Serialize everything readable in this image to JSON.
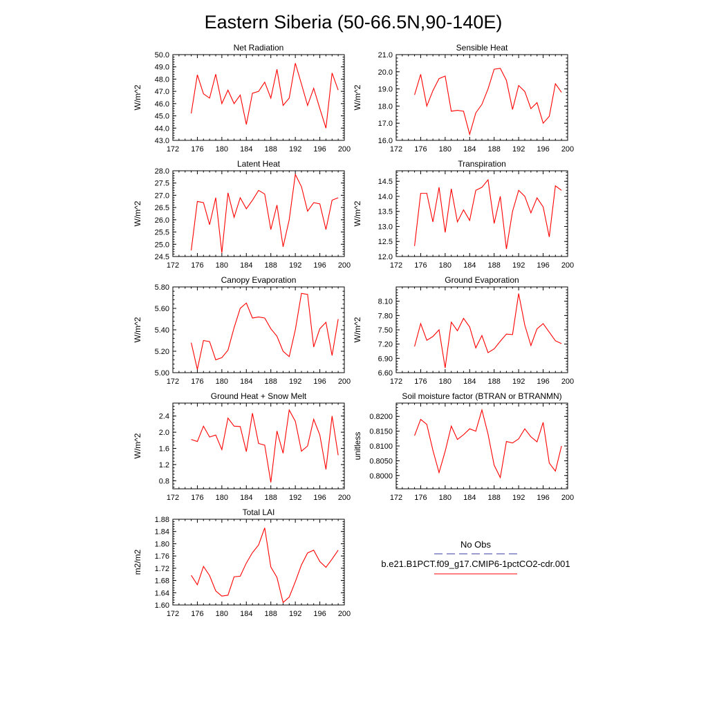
{
  "figure": {
    "title": "Eastern Siberia (50-66.5N,90-140E)"
  },
  "legend": {
    "obs_label": "No Obs",
    "obs_color": "#3a3aa0",
    "model_label": "b.e21.B1PCT.f09_g17.CMIP6-1pctCO2-cdr.001",
    "model_color": "#ff0000"
  },
  "chart_data": [
    {
      "type": "line",
      "title": "Net Radiation",
      "xlabel": "",
      "ylabel": "W/m^2",
      "xlim": [
        172,
        200
      ],
      "ylim": [
        43.0,
        50.0
      ],
      "xticks": [
        "172",
        "176",
        "180",
        "184",
        "188",
        "192",
        "196",
        "200"
      ],
      "yticks": [
        "43.0",
        "44.0",
        "45.0",
        "46.0",
        "47.0",
        "48.0",
        "49.0",
        "50.0"
      ],
      "x": [
        175,
        176,
        177,
        178,
        179,
        180,
        181,
        182,
        183,
        184,
        185,
        186,
        187,
        188,
        189,
        190,
        191,
        192,
        193,
        194,
        195,
        196,
        197,
        198,
        199
      ],
      "series": [
        {
          "values": [
            45.2,
            48.35,
            46.8,
            46.45,
            48.4,
            46.0,
            47.1,
            46.0,
            46.7,
            44.3,
            46.85,
            47.0,
            47.75,
            46.45,
            48.8,
            45.85,
            46.45,
            49.3,
            47.6,
            45.85,
            47.25,
            45.6,
            44.0,
            48.5,
            47.1
          ]
        }
      ]
    },
    {
      "type": "line",
      "title": "Sensible Heat",
      "xlabel": "",
      "ylabel": "W/m^2",
      "xlim": [
        172,
        200
      ],
      "ylim": [
        16.0,
        21.0
      ],
      "xticks": [
        "172",
        "176",
        "180",
        "184",
        "188",
        "192",
        "196",
        "200"
      ],
      "yticks": [
        "16.0",
        "17.0",
        "18.0",
        "19.0",
        "20.0",
        "21.0"
      ],
      "x": [
        175,
        176,
        177,
        178,
        179,
        180,
        181,
        182,
        183,
        184,
        185,
        186,
        187,
        188,
        189,
        190,
        191,
        192,
        193,
        194,
        195,
        196,
        197,
        198,
        199
      ],
      "series": [
        {
          "values": [
            18.65,
            19.85,
            18.0,
            18.9,
            19.6,
            19.75,
            17.7,
            17.75,
            17.7,
            16.35,
            17.6,
            18.1,
            19.0,
            20.15,
            20.2,
            19.5,
            17.8,
            19.2,
            18.85,
            17.85,
            18.2,
            17.0,
            17.4,
            19.3,
            18.8
          ]
        }
      ]
    },
    {
      "type": "line",
      "title": "Latent Heat",
      "xlabel": "",
      "ylabel": "W/m^2",
      "xlim": [
        172,
        200
      ],
      "ylim": [
        24.5,
        28.0
      ],
      "xticks": [
        "172",
        "176",
        "180",
        "184",
        "188",
        "192",
        "196",
        "200"
      ],
      "yticks": [
        "24.5",
        "25.0",
        "25.5",
        "26.0",
        "26.5",
        "27.0",
        "27.5",
        "28.0"
      ],
      "x": [
        175,
        176,
        177,
        178,
        179,
        180,
        181,
        182,
        183,
        184,
        185,
        186,
        187,
        188,
        189,
        190,
        191,
        192,
        193,
        194,
        195,
        196,
        197,
        198,
        199
      ],
      "series": [
        {
          "values": [
            24.75,
            26.75,
            26.7,
            25.8,
            26.9,
            24.65,
            27.1,
            26.1,
            26.9,
            26.45,
            26.8,
            27.2,
            27.05,
            25.6,
            26.6,
            24.9,
            26.0,
            27.85,
            27.35,
            26.35,
            26.7,
            26.65,
            25.6,
            26.8,
            26.9
          ]
        }
      ]
    },
    {
      "type": "line",
      "title": "Transpiration",
      "xlabel": "",
      "ylabel": "W/m^2",
      "xlim": [
        172,
        200
      ],
      "ylim": [
        12.0,
        14.85
      ],
      "xticks": [
        "172",
        "176",
        "180",
        "184",
        "188",
        "192",
        "196",
        "200"
      ],
      "yticks": [
        "12.0",
        "12.5",
        "13.0",
        "13.5",
        "14.0",
        "14.5"
      ],
      "x": [
        175,
        176,
        177,
        178,
        179,
        180,
        181,
        182,
        183,
        184,
        185,
        186,
        187,
        188,
        189,
        190,
        191,
        192,
        193,
        194,
        195,
        196,
        197,
        198,
        199
      ],
      "series": [
        {
          "values": [
            12.35,
            14.1,
            14.1,
            13.15,
            14.3,
            12.8,
            14.25,
            13.15,
            13.55,
            13.2,
            14.2,
            14.3,
            14.55,
            13.1,
            14.0,
            12.25,
            13.5,
            14.2,
            14.0,
            13.45,
            13.95,
            13.65,
            12.65,
            14.35,
            14.2
          ]
        }
      ]
    },
    {
      "type": "line",
      "title": "Canopy Evaporation",
      "xlabel": "",
      "ylabel": "W/m^2",
      "xlim": [
        172,
        200
      ],
      "ylim": [
        5.0,
        5.8
      ],
      "xticks": [
        "172",
        "176",
        "180",
        "184",
        "188",
        "192",
        "196",
        "200"
      ],
      "yticks": [
        "5.00",
        "5.20",
        "5.40",
        "5.60",
        "5.80"
      ],
      "x": [
        175,
        176,
        177,
        178,
        179,
        180,
        181,
        182,
        183,
        184,
        185,
        186,
        187,
        188,
        189,
        190,
        191,
        192,
        193,
        194,
        195,
        196,
        197,
        198,
        199
      ],
      "series": [
        {
          "values": [
            5.28,
            5.03,
            5.3,
            5.29,
            5.12,
            5.14,
            5.21,
            5.42,
            5.6,
            5.65,
            5.51,
            5.52,
            5.51,
            5.41,
            5.34,
            5.2,
            5.15,
            5.4,
            5.74,
            5.73,
            5.24,
            5.41,
            5.47,
            5.16,
            5.5
          ]
        }
      ]
    },
    {
      "type": "line",
      "title": "Ground Evaporation",
      "xlabel": "",
      "ylabel": "W/m^2",
      "xlim": [
        172,
        200
      ],
      "ylim": [
        6.6,
        8.4
      ],
      "xticks": [
        "172",
        "176",
        "180",
        "184",
        "188",
        "192",
        "196",
        "200"
      ],
      "yticks": [
        "6.60",
        "6.90",
        "7.20",
        "7.50",
        "7.80",
        "8.10"
      ],
      "x": [
        175,
        176,
        177,
        178,
        179,
        180,
        181,
        182,
        183,
        184,
        185,
        186,
        187,
        188,
        189,
        190,
        191,
        192,
        193,
        194,
        195,
        196,
        197,
        198,
        199
      ],
      "series": [
        {
          "values": [
            7.15,
            7.63,
            7.28,
            7.36,
            7.5,
            6.7,
            7.66,
            7.48,
            7.74,
            7.56,
            7.12,
            7.38,
            7.02,
            7.1,
            7.26,
            7.41,
            7.4,
            8.26,
            7.6,
            7.17,
            7.52,
            7.63,
            7.45,
            7.27,
            7.21
          ]
        }
      ]
    },
    {
      "type": "line",
      "title": "Ground Heat + Snow Melt",
      "xlabel": "",
      "ylabel": "W/m^2",
      "xlim": [
        172,
        200
      ],
      "ylim": [
        0.6,
        2.72
      ],
      "xticks": [
        "172",
        "176",
        "180",
        "184",
        "188",
        "192",
        "196",
        "200"
      ],
      "yticks": [
        "0.8",
        "1.2",
        "1.6",
        "2.0",
        "2.4"
      ],
      "x": [
        175,
        176,
        177,
        178,
        179,
        180,
        181,
        182,
        183,
        184,
        185,
        186,
        187,
        188,
        189,
        190,
        191,
        192,
        193,
        194,
        195,
        196,
        197,
        198,
        199
      ],
      "series": [
        {
          "values": [
            1.82,
            1.77,
            2.15,
            1.88,
            1.93,
            1.57,
            2.35,
            2.15,
            2.14,
            1.52,
            2.47,
            1.72,
            1.68,
            0.76,
            2.03,
            1.48,
            2.55,
            2.27,
            1.53,
            1.66,
            2.32,
            1.93,
            1.08,
            2.4,
            1.43
          ]
        }
      ]
    },
    {
      "type": "line",
      "title": "Soil moisture factor (BTRAN or BTRANMN)",
      "xlabel": "",
      "ylabel": "unitless",
      "xlim": [
        172,
        200
      ],
      "ylim": [
        0.7955,
        0.8245
      ],
      "xticks": [
        "172",
        "176",
        "180",
        "184",
        "188",
        "192",
        "196",
        "200"
      ],
      "yticks": [
        "0.8000",
        "0.8050",
        "0.8100",
        "0.8150",
        "0.8200"
      ],
      "x": [
        175,
        176,
        177,
        178,
        179,
        180,
        181,
        182,
        183,
        184,
        185,
        186,
        187,
        188,
        189,
        190,
        191,
        192,
        193,
        194,
        195,
        196,
        197,
        198,
        199
      ],
      "series": [
        {
          "values": [
            0.8135,
            0.819,
            0.8173,
            0.8085,
            0.801,
            0.8082,
            0.8167,
            0.8122,
            0.8138,
            0.8158,
            0.815,
            0.8222,
            0.814,
            0.8035,
            0.7993,
            0.8115,
            0.811,
            0.8124,
            0.8158,
            0.8131,
            0.8114,
            0.818,
            0.8042,
            0.8015,
            0.81
          ]
        }
      ]
    },
    {
      "type": "line",
      "title": "Total LAI",
      "xlabel": "",
      "ylabel": "m2/m2",
      "xlim": [
        172,
        200
      ],
      "ylim": [
        1.6,
        1.88
      ],
      "xticks": [
        "172",
        "176",
        "180",
        "184",
        "188",
        "192",
        "196",
        "200"
      ],
      "yticks": [
        "1.60",
        "1.64",
        "1.68",
        "1.72",
        "1.76",
        "1.80",
        "1.84",
        "1.88"
      ],
      "x": [
        175,
        176,
        177,
        178,
        179,
        180,
        181,
        182,
        183,
        184,
        185,
        186,
        187,
        188,
        189,
        190,
        191,
        192,
        193,
        194,
        195,
        196,
        197,
        198,
        199
      ],
      "series": [
        {
          "values": [
            1.697,
            1.666,
            1.726,
            1.696,
            1.646,
            1.629,
            1.632,
            1.692,
            1.694,
            1.737,
            1.771,
            1.796,
            1.852,
            1.724,
            1.69,
            1.608,
            1.626,
            1.676,
            1.731,
            1.77,
            1.779,
            1.742,
            1.723,
            1.75,
            1.779
          ]
        }
      ]
    }
  ]
}
